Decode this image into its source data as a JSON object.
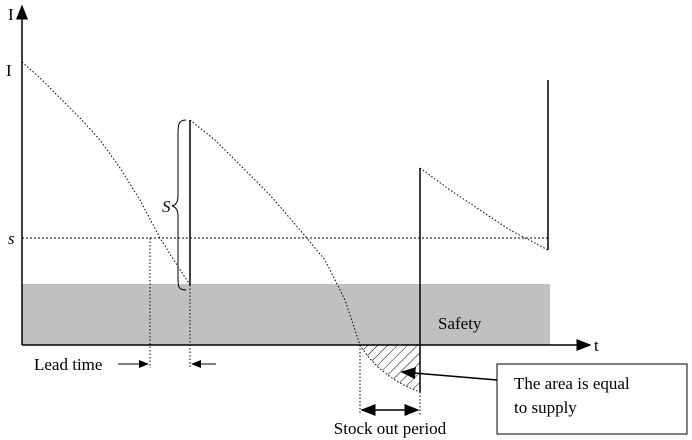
{
  "axes": {
    "y_label": "I",
    "x_label": "t"
  },
  "levels": {
    "initial": "I",
    "reorder": "s",
    "order_size": "S"
  },
  "regions": {
    "safety": "Safety"
  },
  "annotations": {
    "lead_time": "Lead time",
    "stock_out": "Stock out period",
    "callout": {
      "lines": [
        "The area is equal",
        "to supply"
      ]
    }
  }
}
